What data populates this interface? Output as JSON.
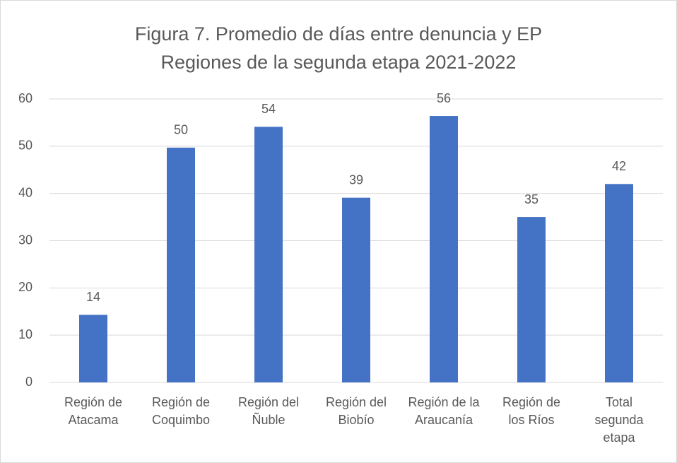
{
  "chart_data": {
    "type": "bar",
    "title": "Figura 7. Promedio de días entre denuncia y EP",
    "subtitle": "Regiones de la segunda etapa 2021-2022",
    "categories": [
      "Región de\nAtacama",
      "Región de\nCoquimbo",
      "Región del\nÑuble",
      "Región del\nBiobío",
      "Región de la\nAraucanía",
      "Región de\nlos Ríos",
      "Total\nsegunda\netapa"
    ],
    "values": [
      14.3,
      49.7,
      54.1,
      39.1,
      56.4,
      35,
      42
    ],
    "value_labels": [
      "14",
      "50",
      "54",
      "39",
      "56",
      "35",
      "42"
    ],
    "color": "#4472c4",
    "ylim": [
      0,
      60
    ],
    "yticks": [
      0,
      10,
      20,
      30,
      40,
      50,
      60
    ],
    "grid": true
  }
}
